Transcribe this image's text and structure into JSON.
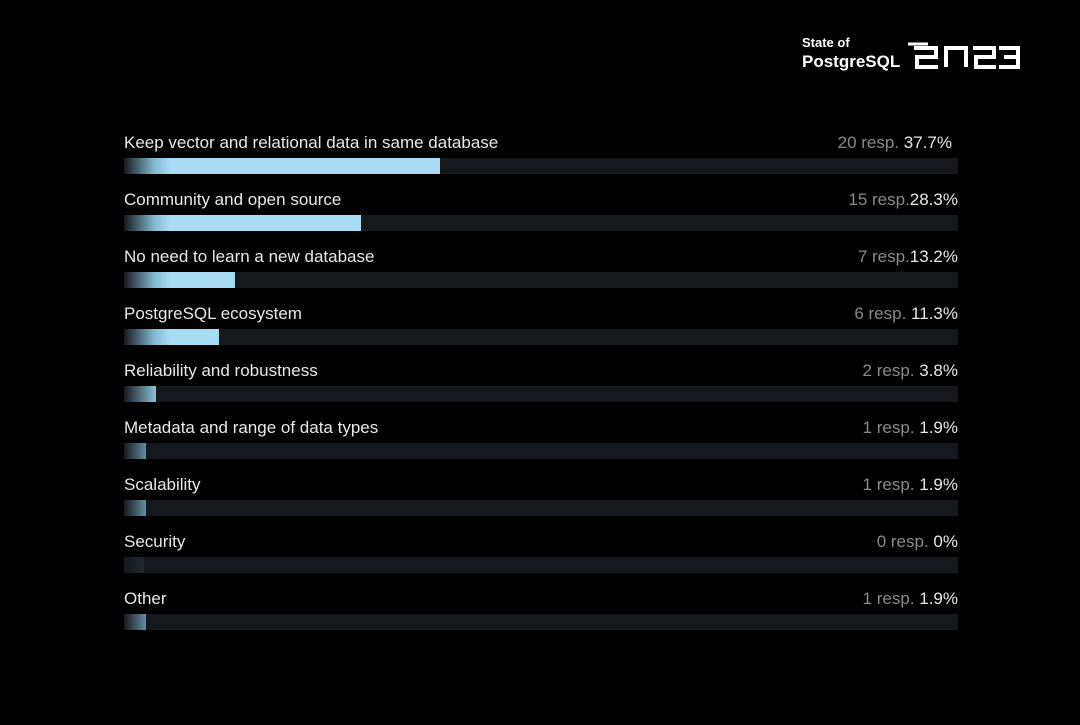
{
  "brand": {
    "line1": "State of",
    "line2": "PostgreSQL",
    "year": "2023"
  },
  "colors": {
    "background": "#000000",
    "bar_fill": "#a9dcf3",
    "bar_track": "#15191d",
    "label_text": "#e8e8e8",
    "resp_text": "#8a8a8a"
  },
  "chart_data": {
    "type": "bar",
    "orientation": "horizontal",
    "categories": [
      "Keep vector and relational data in same database",
      "Community and open source",
      "No need to learn a new database",
      "PostgreSQL ecosystem",
      "Reliability and robustness",
      "Metadata and range of data types",
      "Scalability",
      "Security",
      "Other"
    ],
    "responses": [
      20,
      15,
      7,
      6,
      2,
      1,
      1,
      0,
      1
    ],
    "values": [
      37.7,
      28.3,
      13.2,
      11.3,
      3.8,
      1.9,
      1.9,
      0,
      1.9
    ],
    "value_unit": "%",
    "xlim": [
      0,
      100
    ],
    "resp_labels": [
      "20 resp.",
      "15 resp.",
      "7 resp.",
      "6 resp.",
      "2 resp.",
      "1 resp.",
      "1 resp.",
      "0 resp.",
      "1 resp."
    ],
    "pct_labels": [
      "37.7%",
      "28.3%",
      "13.2%",
      "11.3%",
      "3.8%",
      "1.9%",
      "1.9%",
      "0%",
      "1.9%"
    ],
    "grid": false,
    "legend": "none"
  }
}
